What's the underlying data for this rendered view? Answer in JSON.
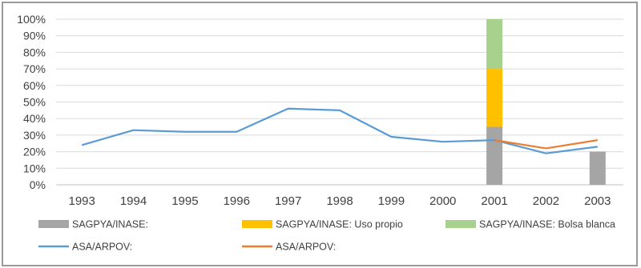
{
  "chart_data": {
    "type": "bar",
    "categories": [
      "1993",
      "1994",
      "1995",
      "1996",
      "1997",
      "1998",
      "1999",
      "2000",
      "2001",
      "2002",
      "2003"
    ],
    "ylim": [
      0,
      100
    ],
    "yticks": [
      "0%",
      "10%",
      "20%",
      "30%",
      "40%",
      "50%",
      "60%",
      "70%",
      "80%",
      "90%",
      "100%"
    ],
    "grid": true,
    "legend_position": "bottom",
    "bar_series": [
      {
        "name": "SAGPYA/INASE:",
        "color": "#a5a5a5",
        "values": [
          null,
          null,
          null,
          null,
          null,
          null,
          null,
          null,
          35,
          null,
          20
        ]
      },
      {
        "name": "SAGPYA/INASE: Uso propio",
        "color": "#ffc000",
        "values": [
          null,
          null,
          null,
          null,
          null,
          null,
          null,
          null,
          35,
          null,
          null
        ]
      },
      {
        "name": "SAGPYA/INASE: Bolsa blanca",
        "color": "#a9d18e",
        "values": [
          null,
          null,
          null,
          null,
          null,
          null,
          null,
          null,
          30,
          null,
          null
        ]
      }
    ],
    "line_series": [
      {
        "name": "ASA/ARPOV:",
        "color": "#5b9bd5",
        "values": [
          24,
          33,
          32,
          32,
          46,
          45,
          29,
          26,
          27,
          19,
          23
        ]
      },
      {
        "name": "ASA/ARPOV:",
        "color": "#ed7d31",
        "values": [
          null,
          null,
          null,
          null,
          null,
          null,
          null,
          null,
          27,
          22,
          27
        ]
      }
    ]
  }
}
